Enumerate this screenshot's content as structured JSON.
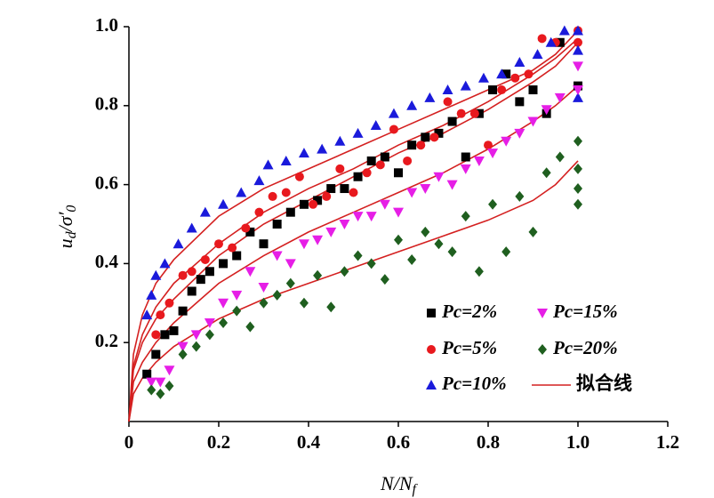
{
  "chart_data": {
    "type": "scatter",
    "xlabel": [
      "N/N",
      "f"
    ],
    "ylabel": [
      "u",
      "d",
      "/σ′",
      "0"
    ],
    "xlim": [
      0,
      1.2
    ],
    "ylim": [
      0,
      1
    ],
    "xticks": [
      0,
      0.2,
      0.4,
      0.6,
      0.8,
      {
        "value": 1,
        "label": "1.0"
      },
      1.2
    ],
    "yticks": [
      0.2,
      0.4,
      0.6,
      0.8,
      {
        "value": 1,
        "label": "1.0"
      }
    ],
    "grid": false,
    "legend": "bottom-right",
    "series": [
      {
        "name": "Pc=2%",
        "color": "#000000",
        "marker": "square",
        "x": [
          0.04,
          0.06,
          0.08,
          0.1,
          0.12,
          0.14,
          0.16,
          0.18,
          0.21,
          0.24,
          0.27,
          0.3,
          0.33,
          0.36,
          0.39,
          0.42,
          0.45,
          0.48,
          0.51,
          0.54,
          0.57,
          0.6,
          0.63,
          0.66,
          0.69,
          0.72,
          0.75,
          0.78,
          0.81,
          0.84,
          0.87,
          0.9,
          0.93,
          0.96,
          1.0
        ],
        "values": [
          0.12,
          0.17,
          0.22,
          0.23,
          0.28,
          0.33,
          0.36,
          0.38,
          0.4,
          0.42,
          0.48,
          0.45,
          0.5,
          0.53,
          0.55,
          0.56,
          0.59,
          0.59,
          0.62,
          0.66,
          0.67,
          0.63,
          0.7,
          0.72,
          0.73,
          0.76,
          0.67,
          0.78,
          0.84,
          0.88,
          0.81,
          0.84,
          0.78,
          0.96,
          0.85
        ]
      },
      {
        "name": "Pc=5%",
        "color": "#e8191e",
        "marker": "circle",
        "x": [
          0.06,
          0.07,
          0.09,
          0.12,
          0.14,
          0.17,
          0.2,
          0.23,
          0.26,
          0.29,
          0.32,
          0.35,
          0.38,
          0.41,
          0.44,
          0.47,
          0.5,
          0.53,
          0.56,
          0.59,
          0.62,
          0.65,
          0.68,
          0.71,
          0.74,
          0.77,
          0.8,
          0.83,
          0.86,
          0.89,
          0.92,
          0.95,
          1.0,
          1.0
        ],
        "values": [
          0.22,
          0.27,
          0.3,
          0.37,
          0.38,
          0.41,
          0.45,
          0.44,
          0.49,
          0.53,
          0.57,
          0.58,
          0.62,
          0.55,
          0.57,
          0.64,
          0.58,
          0.63,
          0.65,
          0.74,
          0.66,
          0.7,
          0.72,
          0.81,
          0.78,
          0.78,
          0.7,
          0.84,
          0.87,
          0.88,
          0.97,
          0.96,
          0.99,
          0.96
        ]
      },
      {
        "name": "Pc=10%",
        "color": "#1a1adb",
        "marker": "triangle",
        "x": [
          0.04,
          0.05,
          0.06,
          0.08,
          0.11,
          0.14,
          0.17,
          0.21,
          0.25,
          0.29,
          0.31,
          0.35,
          0.39,
          0.43,
          0.47,
          0.51,
          0.55,
          0.59,
          0.63,
          0.67,
          0.71,
          0.75,
          0.79,
          0.83,
          0.87,
          0.91,
          0.94,
          0.97,
          1.0,
          1.0,
          1.0
        ],
        "values": [
          0.27,
          0.32,
          0.37,
          0.4,
          0.45,
          0.49,
          0.53,
          0.55,
          0.58,
          0.61,
          0.65,
          0.66,
          0.68,
          0.69,
          0.71,
          0.73,
          0.75,
          0.78,
          0.8,
          0.82,
          0.84,
          0.85,
          0.87,
          0.88,
          0.91,
          0.93,
          0.96,
          0.99,
          0.99,
          0.94,
          0.82
        ]
      },
      {
        "name": "Pc=15%",
        "color": "#e61ee6",
        "marker": "triangle-down",
        "x": [
          0.05,
          0.07,
          0.09,
          0.12,
          0.15,
          0.18,
          0.21,
          0.24,
          0.27,
          0.3,
          0.33,
          0.36,
          0.39,
          0.42,
          0.45,
          0.48,
          0.51,
          0.54,
          0.57,
          0.6,
          0.63,
          0.66,
          0.69,
          0.72,
          0.75,
          0.78,
          0.81,
          0.84,
          0.87,
          0.9,
          0.93,
          0.96,
          1.0,
          1.0
        ],
        "values": [
          0.1,
          0.1,
          0.13,
          0.19,
          0.22,
          0.25,
          0.3,
          0.32,
          0.38,
          0.34,
          0.42,
          0.4,
          0.45,
          0.46,
          0.48,
          0.5,
          0.52,
          0.52,
          0.55,
          0.53,
          0.58,
          0.59,
          0.62,
          0.6,
          0.64,
          0.66,
          0.68,
          0.71,
          0.73,
          0.76,
          0.79,
          0.82,
          0.9,
          0.84
        ]
      },
      {
        "name": "Pc=20%",
        "color": "#1f5f1f",
        "marker": "diamond",
        "x": [
          0.05,
          0.07,
          0.09,
          0.12,
          0.15,
          0.18,
          0.21,
          0.24,
          0.27,
          0.3,
          0.33,
          0.36,
          0.39,
          0.42,
          0.45,
          0.48,
          0.51,
          0.54,
          0.57,
          0.6,
          0.63,
          0.66,
          0.69,
          0.72,
          0.75,
          0.78,
          0.81,
          0.84,
          0.87,
          0.9,
          0.93,
          0.96,
          1.0,
          1.0,
          1.0,
          1.0
        ],
        "values": [
          0.08,
          0.07,
          0.09,
          0.17,
          0.19,
          0.22,
          0.25,
          0.28,
          0.24,
          0.3,
          0.32,
          0.35,
          0.3,
          0.37,
          0.29,
          0.38,
          0.42,
          0.4,
          0.36,
          0.46,
          0.41,
          0.48,
          0.45,
          0.43,
          0.52,
          0.38,
          0.55,
          0.43,
          0.57,
          0.48,
          0.63,
          0.67,
          0.71,
          0.64,
          0.59,
          0.55
        ]
      }
    ],
    "fit_lines": {
      "name": "拟合线",
      "color": "#d42020",
      "curves": [
        {
          "x": [
            0,
            0.01,
            0.03,
            0.06,
            0.1,
            0.2,
            0.3,
            0.4,
            0.5,
            0.6,
            0.7,
            0.8,
            0.9,
            0.95,
            1.0
          ],
          "values": [
            0,
            0.17,
            0.27,
            0.35,
            0.41,
            0.52,
            0.59,
            0.64,
            0.69,
            0.74,
            0.79,
            0.84,
            0.89,
            0.93,
            0.99
          ]
        },
        {
          "x": [
            0,
            0.01,
            0.03,
            0.06,
            0.1,
            0.2,
            0.3,
            0.4,
            0.5,
            0.6,
            0.7,
            0.8,
            0.9,
            0.95,
            1.0
          ],
          "values": [
            0,
            0.14,
            0.22,
            0.29,
            0.35,
            0.45,
            0.53,
            0.59,
            0.64,
            0.7,
            0.75,
            0.81,
            0.88,
            0.92,
            0.97
          ]
        },
        {
          "x": [
            0,
            0.01,
            0.03,
            0.06,
            0.1,
            0.2,
            0.3,
            0.4,
            0.5,
            0.6,
            0.7,
            0.8,
            0.9,
            0.95,
            1.0
          ],
          "values": [
            0,
            0.13,
            0.2,
            0.26,
            0.31,
            0.42,
            0.5,
            0.56,
            0.62,
            0.68,
            0.73,
            0.79,
            0.86,
            0.9,
            0.96
          ]
        },
        {
          "x": [
            0,
            0.01,
            0.03,
            0.06,
            0.1,
            0.2,
            0.3,
            0.4,
            0.5,
            0.6,
            0.7,
            0.8,
            0.9,
            0.95,
            1.0
          ],
          "values": [
            0,
            0.1,
            0.15,
            0.2,
            0.25,
            0.35,
            0.42,
            0.48,
            0.53,
            0.58,
            0.63,
            0.69,
            0.76,
            0.8,
            0.85
          ]
        },
        {
          "x": [
            0,
            0.01,
            0.03,
            0.06,
            0.1,
            0.2,
            0.3,
            0.4,
            0.5,
            0.6,
            0.7,
            0.8,
            0.9,
            0.95,
            1.0
          ],
          "values": [
            0,
            0.07,
            0.11,
            0.15,
            0.19,
            0.26,
            0.31,
            0.35,
            0.39,
            0.43,
            0.47,
            0.51,
            0.56,
            0.6,
            0.66
          ]
        }
      ]
    }
  }
}
